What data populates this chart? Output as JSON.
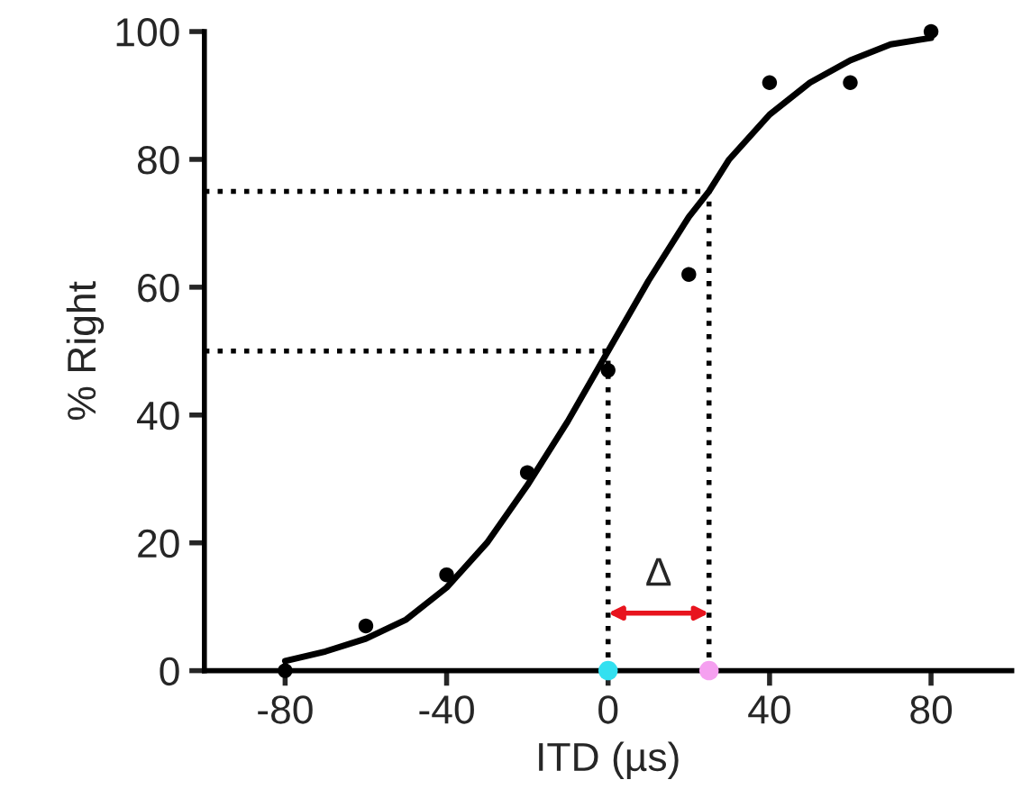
{
  "chart_data": {
    "type": "scatter",
    "xlabel": "ITD (µs)",
    "ylabel": "% Right",
    "xlim": [
      -100,
      100
    ],
    "xticks": [
      -80,
      -40,
      0,
      40,
      80
    ],
    "ylim": [
      0,
      100
    ],
    "yticks": [
      0,
      20,
      40,
      60,
      80,
      100
    ],
    "grid": false,
    "legend": false,
    "series": [
      {
        "color": "#000000",
        "marker": "circle",
        "x": [
          -80,
          -60,
          -40,
          -20,
          0,
          20,
          40,
          60,
          80
        ],
        "values": [
          0,
          7,
          15,
          31,
          47,
          62,
          92,
          92,
          100
        ]
      },
      {
        "type": "line",
        "color": "#000000",
        "marker": "none",
        "line_style": "solid",
        "x": [
          -80,
          -70,
          -60,
          -50,
          -40,
          -30,
          -20,
          -10,
          0,
          10,
          20,
          25,
          30,
          40,
          50,
          60,
          70,
          80
        ],
        "values": [
          1.5,
          3,
          5,
          8,
          13,
          20,
          29,
          39,
          50,
          61,
          71,
          75,
          80,
          87,
          92,
          95.5,
          98,
          99
        ]
      },
      {
        "colors": [
          "#33e0f0",
          "#f5a0f0"
        ],
        "marker": "circle",
        "x": [
          0,
          25
        ],
        "values": [
          0,
          0
        ]
      }
    ],
    "ref_lines": [
      {
        "axis": "y",
        "value": 50,
        "line_style": "dotted",
        "color": "#000000"
      },
      {
        "axis": "y",
        "value": 75,
        "line_style": "dotted",
        "color": "#000000"
      },
      {
        "axis": "x",
        "value": 0,
        "line_style": "dotted",
        "color": "#000000"
      },
      {
        "axis": "x",
        "value": 25,
        "line_style": "dotted",
        "color": "#000000"
      }
    ],
    "annotations": [
      "Δ"
    ]
  }
}
